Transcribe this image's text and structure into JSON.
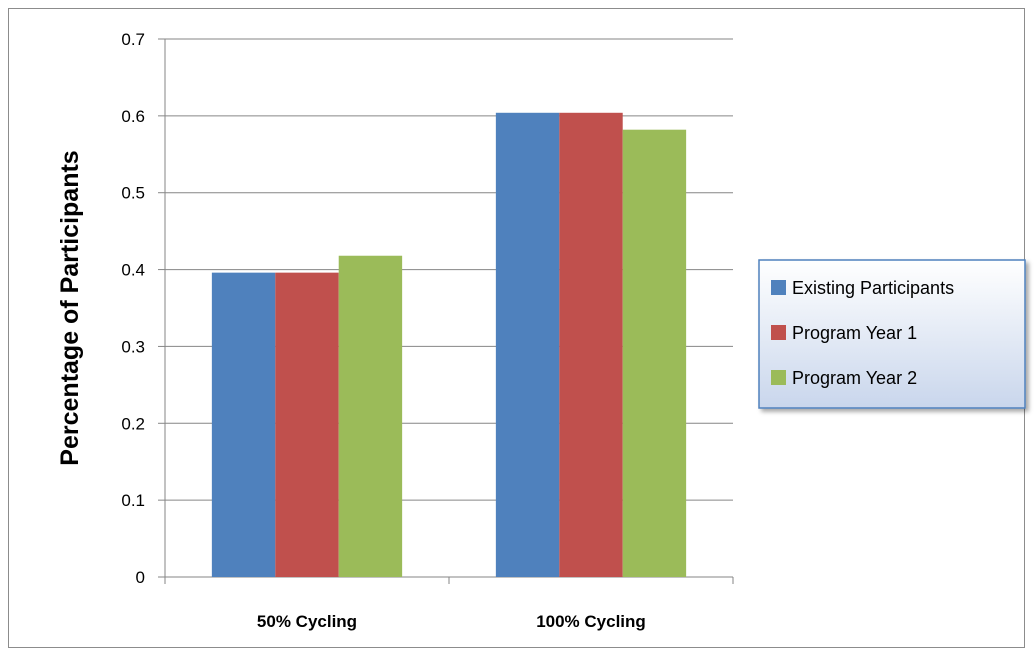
{
  "chart_data": {
    "type": "bar",
    "title": "",
    "xlabel": "",
    "ylabel": "Percentage of Participants",
    "ylim": [
      0,
      0.7
    ],
    "yticks": [
      "0",
      "0.1",
      "0.2",
      "0.3",
      "0.4",
      "0.5",
      "0.6",
      "0.7"
    ],
    "categories": [
      "50% Cycling",
      "100% Cycling"
    ],
    "series": [
      {
        "name": "Existing Participants",
        "color": "#4f81bd",
        "values": [
          0.396,
          0.604
        ]
      },
      {
        "name": "Program Year 1",
        "color": "#c0504d",
        "values": [
          0.396,
          0.604
        ]
      },
      {
        "name": "Program Year 2",
        "color": "#9bbb59",
        "values": [
          0.418,
          0.582
        ]
      }
    ],
    "grid": true,
    "legend_position": "right"
  }
}
